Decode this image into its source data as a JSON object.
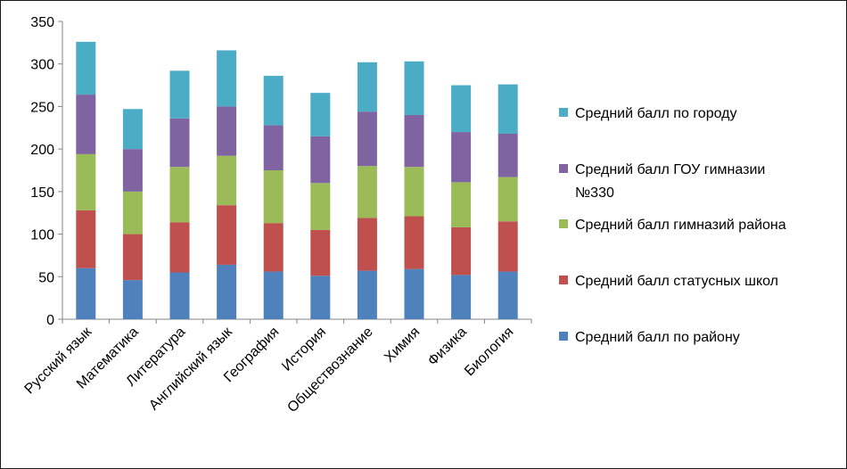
{
  "chart_data": {
    "type": "bar",
    "stacked": true,
    "categories": [
      "Русский язык",
      "Математика",
      "Литература",
      "Английский язык",
      "География",
      "История",
      "Обществознание",
      "Химия",
      "Физика",
      "Биология"
    ],
    "series": [
      {
        "name": "Средний балл по району",
        "color": "#4F81BD",
        "values": [
          60,
          46,
          55,
          64,
          56,
          51,
          57,
          59,
          52,
          56
        ]
      },
      {
        "name": "Средний балл статусных школ",
        "color": "#C0504D",
        "values": [
          68,
          54,
          59,
          70,
          57,
          54,
          62,
          62,
          56,
          59
        ]
      },
      {
        "name": "Средний балл гимназий района",
        "color": "#9BBB59",
        "values": [
          66,
          50,
          65,
          58,
          62,
          55,
          61,
          58,
          53,
          52
        ]
      },
      {
        "name": "Средний балл ГОУ гимназии №330",
        "color": "#8064A2",
        "values": [
          70,
          50,
          57,
          58,
          53,
          55,
          64,
          61,
          59,
          51
        ]
      },
      {
        "name": "Средний балл по городу",
        "color": "#4BACC6",
        "values": [
          62,
          47,
          56,
          66,
          58,
          51,
          58,
          63,
          55,
          58
        ]
      }
    ],
    "title": "",
    "xlabel": "",
    "ylabel": "",
    "ylim": [
      0,
      350
    ],
    "yticks": [
      "0",
      "50",
      "100",
      "150",
      "200",
      "250",
      "300",
      "350"
    ],
    "grid": false,
    "legend_position": "right",
    "legend_order": [
      "Средний балл по городу",
      "Средний балл ГОУ гимназии №330",
      "Средний балл гимназий района",
      "Средний балл статусных школ",
      "Средний балл по району"
    ]
  }
}
